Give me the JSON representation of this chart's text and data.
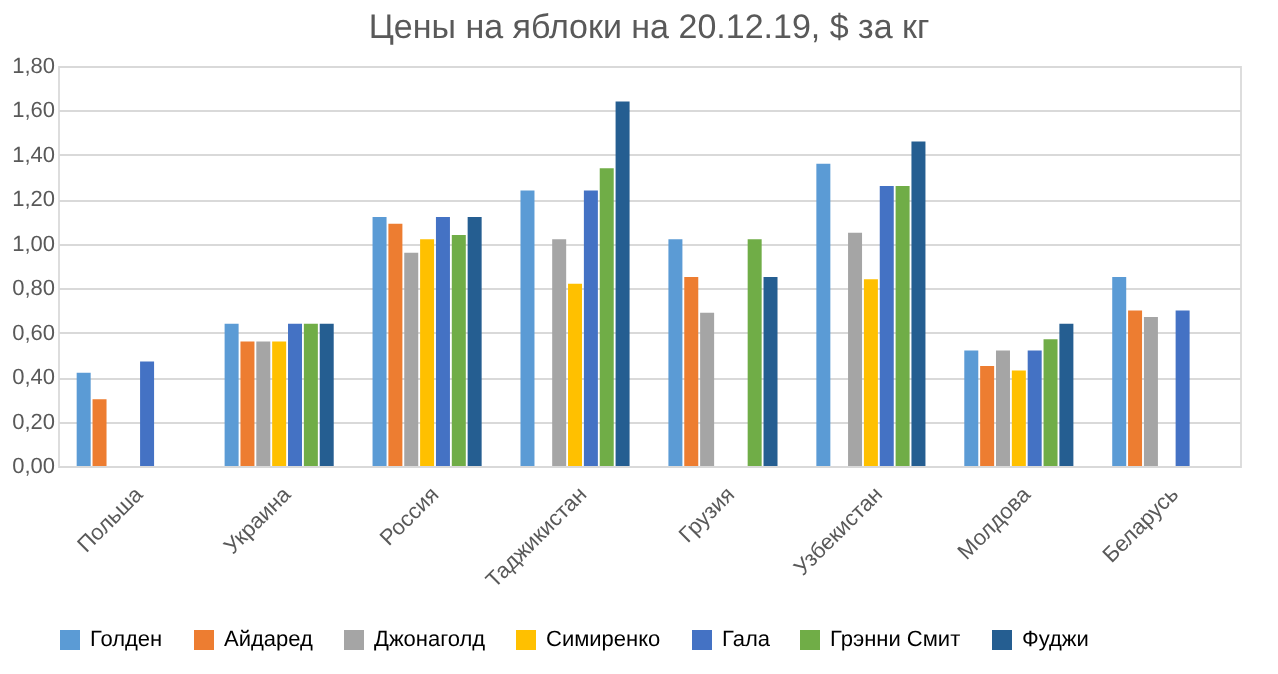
{
  "chart_data": {
    "type": "bar",
    "title": "Цены на яблоки на 20.12.19, $ за кг",
    "categories": [
      "Польша",
      "Украина",
      "Россия",
      "Таджикистан",
      "Грузия",
      "Узбекистан",
      "Молдова",
      "Беларусь"
    ],
    "series": [
      {
        "name": "Голден",
        "color": "#5b9bd5",
        "values": [
          0.42,
          0.64,
          1.12,
          1.24,
          1.02,
          1.36,
          0.52,
          0.85
        ]
      },
      {
        "name": "Айдаред",
        "color": "#ed7d31",
        "values": [
          0.3,
          0.56,
          1.09,
          null,
          0.85,
          null,
          0.45,
          0.7
        ]
      },
      {
        "name": "Джонаголд",
        "color": "#a5a5a5",
        "values": [
          null,
          0.56,
          0.96,
          1.02,
          0.69,
          1.05,
          0.52,
          0.67
        ]
      },
      {
        "name": "Симиренко",
        "color": "#ffc000",
        "values": [
          null,
          0.56,
          1.02,
          0.82,
          null,
          0.84,
          0.43,
          null
        ]
      },
      {
        "name": "Гала",
        "color": "#4472c4",
        "values": [
          0.47,
          0.64,
          1.12,
          1.24,
          null,
          1.26,
          0.52,
          0.7
        ]
      },
      {
        "name": "Грэнни Смит",
        "color": "#70ad47",
        "values": [
          null,
          0.64,
          1.04,
          1.34,
          1.02,
          1.26,
          0.57,
          null
        ]
      },
      {
        "name": "Фуджи",
        "color": "#255e91",
        "values": [
          null,
          0.64,
          1.12,
          1.64,
          0.85,
          1.46,
          0.64,
          null
        ]
      }
    ],
    "ylim": [
      0,
      1.8
    ],
    "yticks": [
      {
        "value": 0,
        "label": "0,00"
      },
      {
        "value": 0.2,
        "label": "0,20"
      },
      {
        "value": 0.4,
        "label": "0,40"
      },
      {
        "value": 0.6,
        "label": "0,60"
      },
      {
        "value": 0.8,
        "label": "0,80"
      },
      {
        "value": 1.0,
        "label": "1,00"
      },
      {
        "value": 1.2,
        "label": "1,20"
      },
      {
        "value": 1.4,
        "label": "1,40"
      },
      {
        "value": 1.6,
        "label": "1,60"
      },
      {
        "value": 1.8,
        "label": "1,80"
      }
    ],
    "grid": "y",
    "legend": "bottom"
  }
}
